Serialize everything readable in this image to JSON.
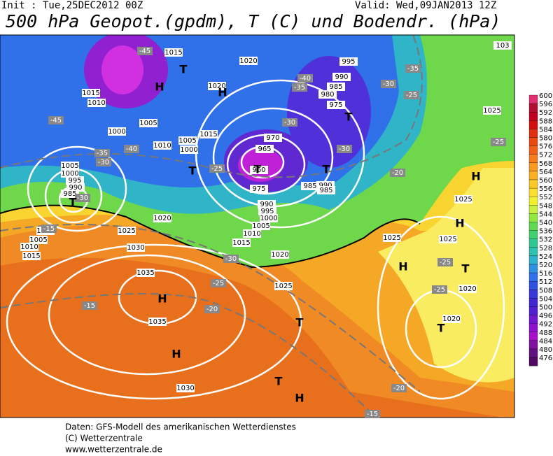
{
  "header": {
    "init": "Init : Tue,25DEC2012 00Z",
    "valid": "Valid: Wed,09JAN2013 12Z",
    "title": "500 hPa Geopot.(gpdm), T (C) und Bodendr. (hPa)"
  },
  "legend": {
    "labels": [
      "600",
      "596",
      "592",
      "588",
      "584",
      "580",
      "576",
      "572",
      "568",
      "564",
      "560",
      "556",
      "552",
      "548",
      "544",
      "540",
      "536",
      "532",
      "528",
      "524",
      "520",
      "516",
      "512",
      "508",
      "504",
      "500",
      "496",
      "492",
      "488",
      "484",
      "480",
      "476"
    ]
  },
  "map": {
    "pressure_labels": [
      "1015",
      "1020",
      "995",
      "990",
      "985",
      "980",
      "975",
      "1015",
      "1010",
      "1005",
      "1000",
      "1010",
      "1005",
      "1000",
      "1015",
      "1020",
      "970",
      "965",
      "960",
      "975",
      "985",
      "990",
      "985",
      "990",
      "995",
      "1000",
      "1005",
      "1010",
      "1015",
      "1020",
      "1025",
      "1020",
      "1025",
      "1030",
      "1035",
      "1035",
      "1030",
      "1005",
      "1000",
      "995",
      "990",
      "985",
      "1000",
      "1005",
      "1010",
      "1015",
      "1025",
      "1025",
      "1025",
      "1020",
      "1020",
      "1025",
      "103"
    ],
    "temperature_labels": [
      "-45",
      "-45",
      "-40",
      "-35",
      "-30",
      "-35",
      "-30",
      "-25",
      "-35",
      "-40",
      "-30",
      "-30",
      "-25",
      "-20",
      "-25",
      "-30",
      "-15",
      "-30",
      "-25",
      "-20",
      "-15",
      "-25",
      "-25",
      "-20",
      "-15"
    ],
    "markers": [
      "T",
      "H",
      "H",
      "T",
      "T",
      "T",
      "T",
      "T",
      "H",
      "H",
      "H",
      "T",
      "T",
      "H",
      "T",
      "H",
      "T",
      "H"
    ]
  },
  "footer": {
    "line1": "Daten: GFS-Modell des amerikanischen Wetterdienstes",
    "line2": "(C) Wetterzentrale",
    "line3": "www.wetterzentrale.de"
  }
}
